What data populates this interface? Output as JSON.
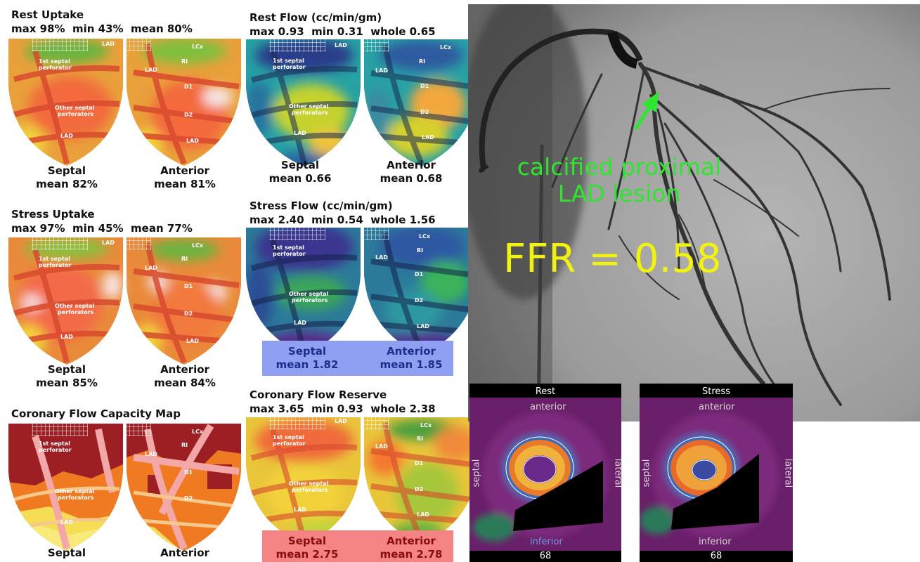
{
  "panels": {
    "rest_uptake": {
      "title": "Rest Uptake",
      "stats": "max 98%  min 43%  mean 80%",
      "left": {
        "name": "Septal",
        "value": "mean 82%"
      },
      "right": {
        "name": "Anterior",
        "value": "mean 81%"
      }
    },
    "stress_uptake": {
      "title": "Stress Uptake",
      "stats": "max 97%  min 45%  mean 77%",
      "left": {
        "name": "Septal",
        "value": "mean 85%"
      },
      "right": {
        "name": "Anterior",
        "value": "mean 84%"
      }
    },
    "cfc_map": {
      "title": "Coronary Flow Capacity Map",
      "left": {
        "name": "Septal"
      },
      "right": {
        "name": "Anterior"
      }
    },
    "rest_flow": {
      "title": "Rest Flow (cc/min/gm)",
      "stats": "max 0.93  min 0.31  whole 0.65",
      "left": {
        "name": "Septal",
        "value": "mean 0.66"
      },
      "right": {
        "name": "Anterior",
        "value": "mean 0.68"
      }
    },
    "stress_flow": {
      "title": "Stress Flow (cc/min/gm)",
      "stats": "max 2.40  min 0.54  whole 1.56",
      "left": {
        "name": "Septal",
        "value": "mean 1.82"
      },
      "right": {
        "name": "Anterior",
        "value": "mean 1.85"
      }
    },
    "cfr": {
      "title": "Coronary Flow Reserve",
      "stats": "max 3.65  min 0.93  whole 2.38",
      "left": {
        "name": "Septal",
        "value": "mean 2.75"
      },
      "right": {
        "name": "Anterior",
        "value": "mean 2.78"
      }
    }
  },
  "map_labels": {
    "lad": "LAD",
    "lcx": "LCx",
    "ri": "RI",
    "d1": "D1",
    "d2": "D2",
    "first_septal": "1st septal",
    "perforator": "perforator",
    "other_septal": "Other septal",
    "perforators": "perforators"
  },
  "angiogram": {
    "annotation_line1": "calcified proximal",
    "annotation_line2": "LAD lesion",
    "ffr": "FFR = 0.58"
  },
  "pet": {
    "rest": {
      "header": "Rest",
      "top": "anterior",
      "bottom": "inferior",
      "left": "septal",
      "right": "lateral",
      "number": "68"
    },
    "stress": {
      "header": "Stress",
      "top": "anterior",
      "bottom": "inferior",
      "left": "septal",
      "right": "lateral",
      "number": "68"
    }
  },
  "colors": {
    "septal_box_blue": "#8fa0f3",
    "septal_box_red": "#f48383",
    "annotation_green": "#2ee62e",
    "ffr_yellow": "#f2f20f"
  }
}
